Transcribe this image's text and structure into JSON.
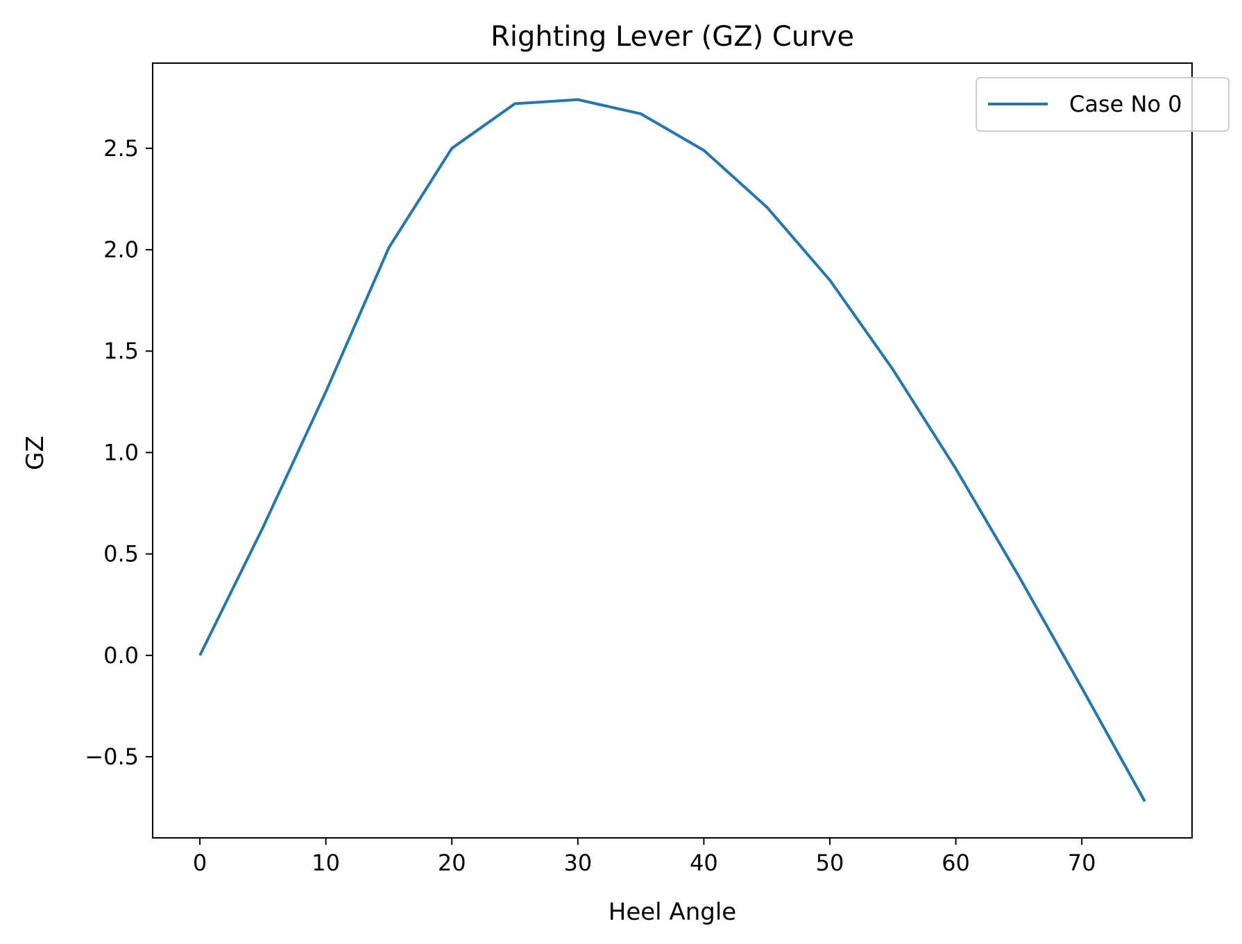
{
  "chart_data": {
    "type": "line",
    "title": "Righting Lever (GZ) Curve",
    "xlabel": "Heel Angle",
    "ylabel": "GZ",
    "xlim": [
      -3.75,
      78.75
    ],
    "ylim": [
      -0.9,
      2.92
    ],
    "x_ticks": [
      0,
      10,
      20,
      30,
      40,
      50,
      60,
      70
    ],
    "y_ticks": [
      -0.5,
      0.0,
      0.5,
      1.0,
      1.5,
      2.0,
      2.5
    ],
    "x_tick_labels": [
      "0",
      "10",
      "20",
      "30",
      "40",
      "50",
      "60",
      "70"
    ],
    "y_tick_labels": [
      "−0.5",
      "0.0",
      "0.5",
      "1.0",
      "1.5",
      "2.0",
      "2.5"
    ],
    "grid": false,
    "legend_position": "top-right",
    "series": [
      {
        "name": "Case No 0",
        "color": "#1f77b4",
        "x": [
          0,
          5,
          10,
          15,
          20,
          25,
          30,
          35,
          40,
          45,
          50,
          55,
          60,
          65,
          70,
          75
        ],
        "y": [
          0.0,
          0.63,
          1.3,
          2.01,
          2.5,
          2.72,
          2.74,
          2.67,
          2.49,
          2.21,
          1.85,
          1.41,
          0.92,
          0.39,
          -0.16,
          -0.72
        ]
      }
    ]
  }
}
